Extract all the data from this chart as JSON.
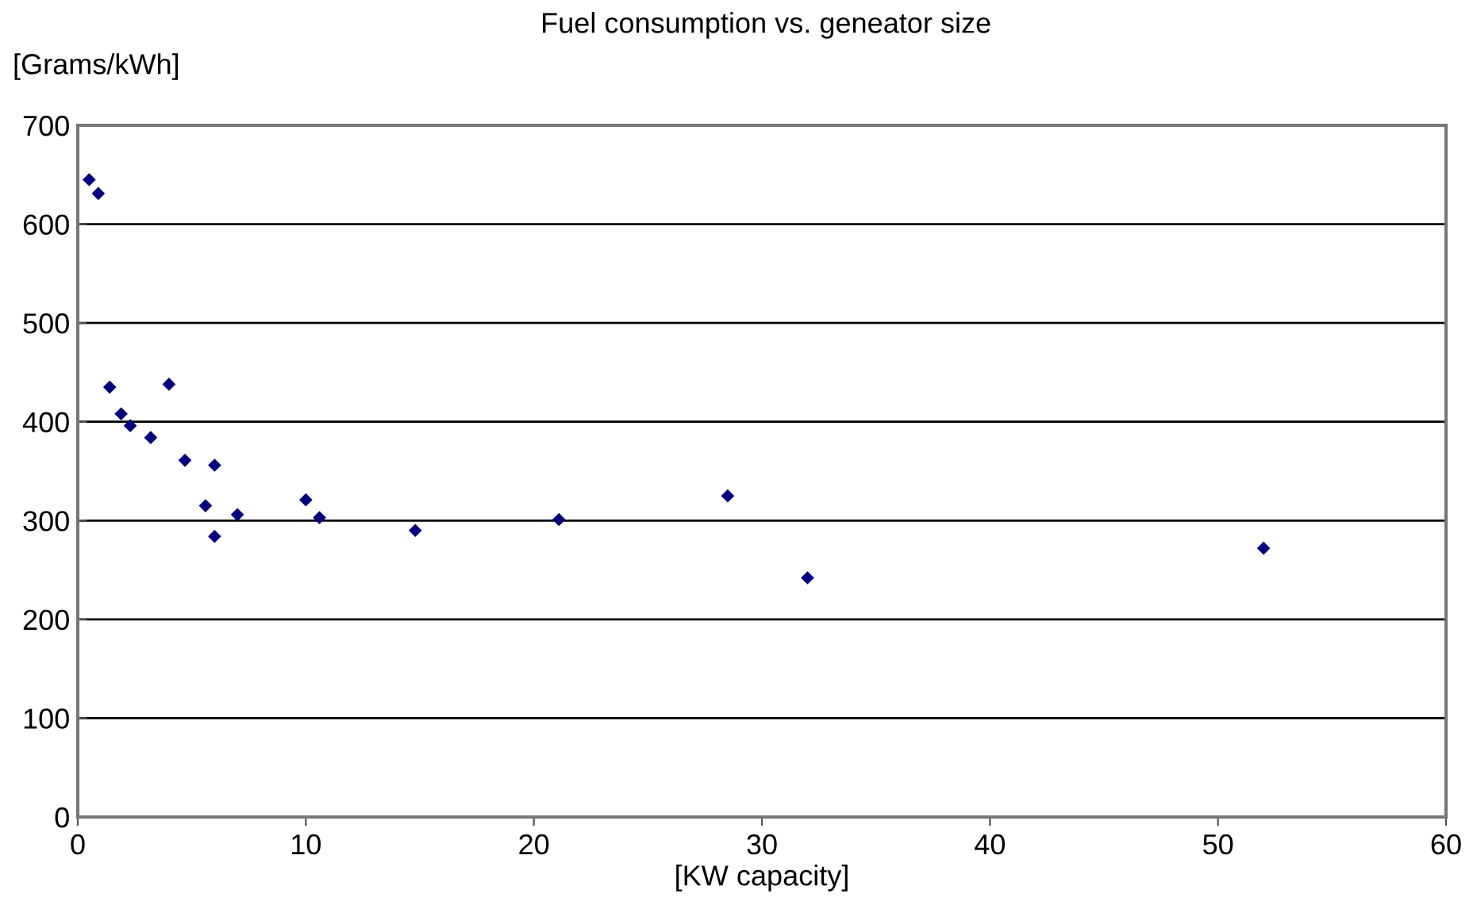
{
  "chart_data": {
    "type": "scatter",
    "title": "Fuel consumption vs. geneator size",
    "xlabel": "[KW capacity]",
    "ylabel": "[Grams/kWh]",
    "x": [
      0.5,
      0.9,
      1.4,
      1.9,
      2.3,
      3.2,
      4.0,
      4.7,
      6.0,
      5.6,
      6.0,
      7.0,
      10.0,
      10.6,
      14.8,
      21.1,
      28.5,
      32.0,
      52.0
    ],
    "series": [
      {
        "color": "#000080",
        "values": [
          645,
          631,
          435,
          408,
          396,
          384,
          438,
          361,
          356,
          315,
          284,
          306,
          321,
          303,
          290,
          301,
          325,
          242,
          272
        ]
      }
    ],
    "marker": "diamond",
    "grid": "y",
    "xlim": [
      0,
      60
    ],
    "ylim": [
      0,
      700
    ],
    "xticks": [
      0,
      10,
      20,
      30,
      40,
      50,
      60
    ],
    "yticks": [
      0,
      100,
      200,
      300,
      400,
      500,
      600,
      700
    ]
  }
}
